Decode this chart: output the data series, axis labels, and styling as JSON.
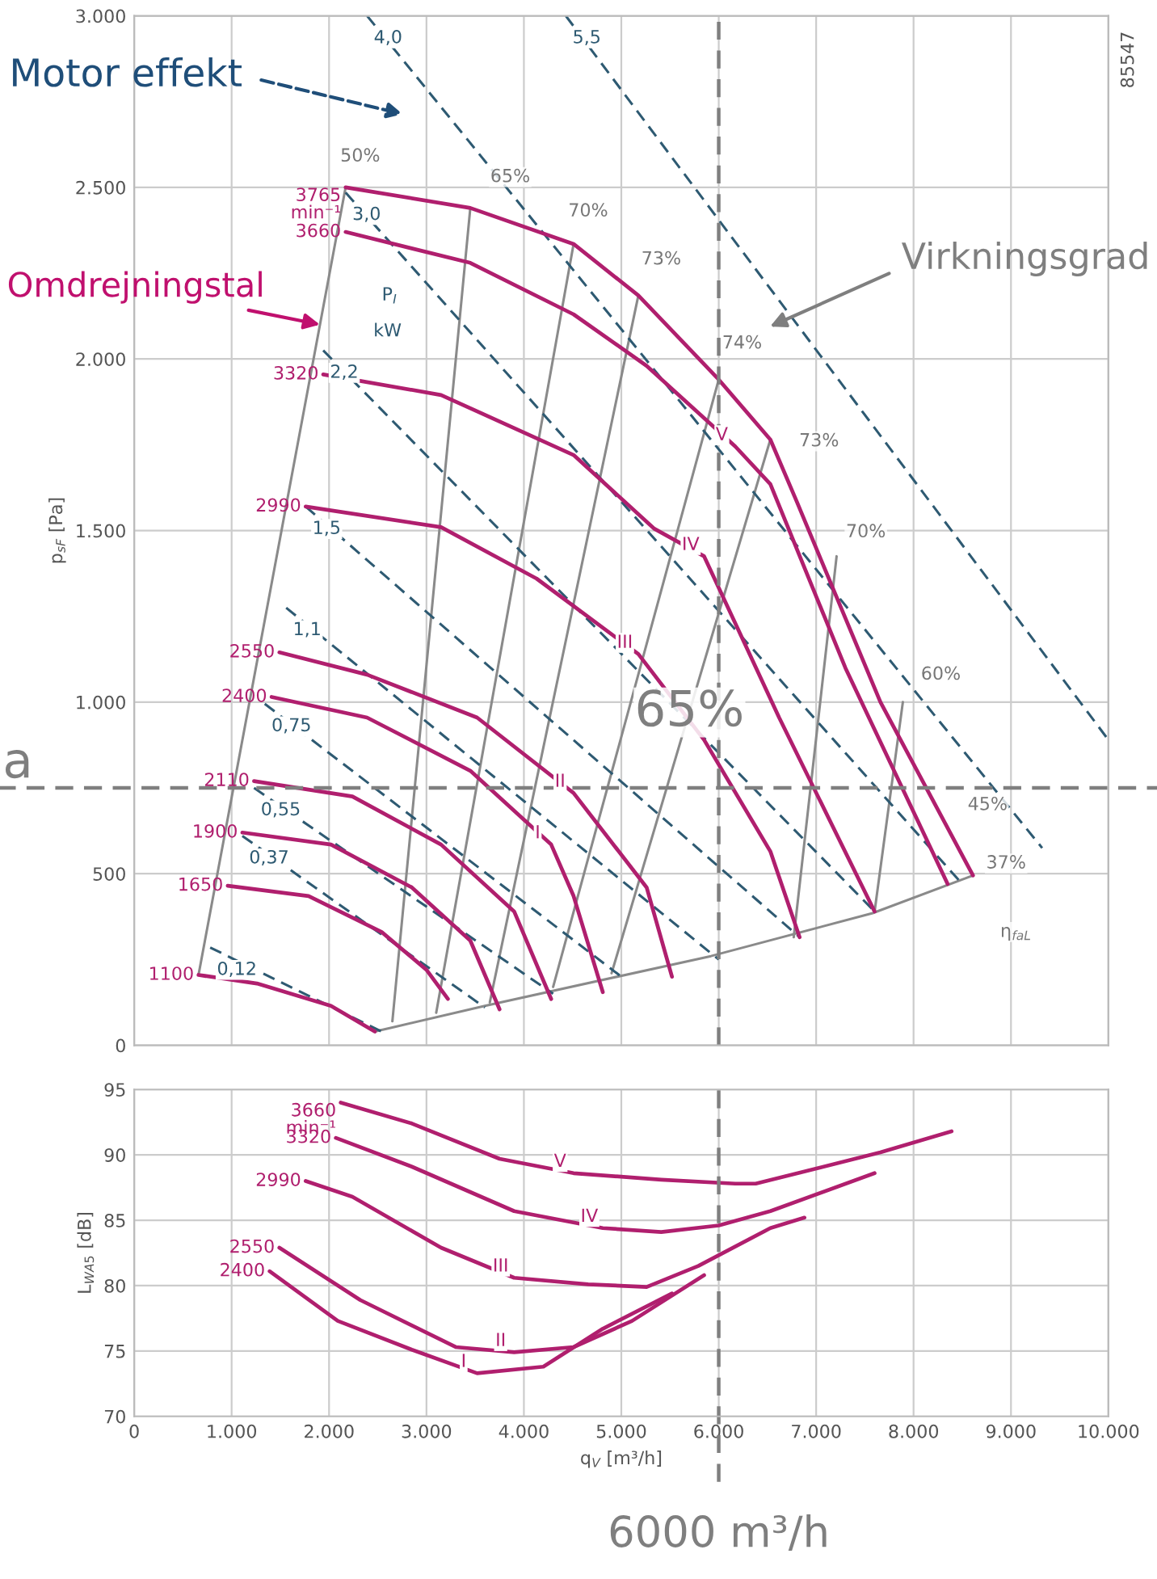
{
  "chart_data": [
    {
      "type": "line",
      "ylabel": "p$_{sF}$ [Pa]",
      "xlim": [
        0,
        10000
      ],
      "ylim": [
        0,
        3000
      ],
      "xticks": [
        0,
        1000,
        2000,
        3000,
        4000,
        5000,
        6000,
        7000,
        8000,
        9000,
        10000
      ],
      "yticks": [
        0,
        500,
        {
          "value": 1000,
          "label": "1.000"
        },
        {
          "value": 1500,
          "label": "1.500"
        },
        {
          "value": 2000,
          "label": "2.000"
        },
        {
          "value": 2500,
          "label": "2.500"
        },
        {
          "value": 3000,
          "label": "3.000"
        }
      ],
      "tick_labels": "y",
      "grid": true,
      "marker": "none",
      "series": [
        {
          "color": "#8a8a8a",
          "line_style": "solid",
          "x": [
            660,
            2170
          ],
          "values": [
            205,
            2500
          ]
        },
        {
          "color": "#8a8a8a",
          "line_style": "solid",
          "x": [
            2470,
            3600,
            5920,
            7580,
            8610
          ],
          "values": [
            40,
            115,
            260,
            385,
            495
          ]
        },
        {
          "color": "#8a8a8a",
          "line_style": "solid",
          "x": [
            3450,
            2650
          ],
          "values": [
            2440,
            70
          ]
        },
        {
          "color": "#8a8a8a",
          "line_style": "solid",
          "x": [
            4510,
            3100
          ],
          "values": [
            2335,
            95
          ]
        },
        {
          "color": "#8a8a8a",
          "line_style": "solid",
          "x": [
            5175,
            3650
          ],
          "values": [
            2185,
            125
          ]
        },
        {
          "color": "#8a8a8a",
          "line_style": "solid",
          "x": [
            6000,
            4300
          ],
          "values": [
            1940,
            170
          ]
        },
        {
          "color": "#8a8a8a",
          "line_style": "solid",
          "x": [
            6530,
            4900
          ],
          "values": [
            1765,
            210
          ]
        },
        {
          "color": "#8a8a8a",
          "line_style": "solid",
          "x": [
            7210,
            6770
          ],
          "values": [
            1425,
            315
          ]
        },
        {
          "color": "#8a8a8a",
          "line_style": "solid",
          "x": [
            7890,
            7600
          ],
          "values": [
            1000,
            390
          ]
        },
        {
          "name": "0,12",
          "color": "#2e5a72",
          "line_style": "dashed",
          "x": [
            780,
            2540
          ],
          "values": [
            285,
            40
          ]
        },
        {
          "name": "0,37",
          "color": "#2e5a72",
          "line_style": "dashed",
          "x": [
            1110,
            3600
          ],
          "values": [
            610,
            110
          ]
        },
        {
          "name": "0,55",
          "color": "#2e5a72",
          "line_style": "dashed",
          "x": [
            1230,
            4300
          ],
          "values": [
            750,
            150
          ]
        },
        {
          "name": "0,75",
          "color": "#2e5a72",
          "line_style": "dashed",
          "x": [
            1340,
            5000
          ],
          "values": [
            995,
            200
          ]
        },
        {
          "name": "1,1",
          "color": "#2e5a72",
          "line_style": "dashed",
          "x": [
            1560,
            6000
          ],
          "values": [
            1275,
            250
          ]
        },
        {
          "name": "1,5",
          "color": "#2e5a72",
          "line_style": "dashed",
          "x": [
            1760,
            6830
          ],
          "values": [
            1570,
            315
          ]
        },
        {
          "name": "2,2",
          "color": "#2e5a72",
          "line_style": "dashed",
          "x": [
            1940,
            7600
          ],
          "values": [
            2025,
            390
          ]
        },
        {
          "name": "3,0",
          "color": "#2e5a72",
          "line_style": "dashed",
          "x": [
            2170,
            8500
          ],
          "values": [
            2485,
            470
          ]
        },
        {
          "name": "4,0",
          "color": "#2e5a72",
          "line_style": "dashed",
          "x": [
            2390,
            9320
          ],
          "values": [
            3000,
            575
          ]
        },
        {
          "name": "5,5",
          "color": "#2e5a72",
          "line_style": "dashed",
          "x": [
            4430,
            10000
          ],
          "values": [
            3000,
            890
          ]
        },
        {
          "name": "3765\nmin⁻¹",
          "color": "#b01f6e",
          "line_style": "solid",
          "x": [
            2170,
            3450,
            4510,
            5175,
            6000,
            6530,
            6800,
            7660,
            8610
          ],
          "values": [
            2500,
            2440,
            2335,
            2185,
            1940,
            1765,
            1585,
            1000,
            495
          ]
        },
        {
          "name": "3660",
          "color": "#b01f6e",
          "line_style": "solid",
          "x": [
            2170,
            3450,
            4510,
            5260,
            6170,
            6530,
            7300,
            8350
          ],
          "values": [
            2370,
            2280,
            2130,
            1980,
            1745,
            1635,
            1100,
            470
          ]
        },
        {
          "name": "3320",
          "color": "#b01f6e",
          "line_style": "solid",
          "x": [
            1940,
            3150,
            4510,
            5340,
            5850,
            6620,
            7600
          ],
          "values": [
            1955,
            1895,
            1720,
            1505,
            1425,
            955,
            390
          ]
        },
        {
          "name": "2990",
          "color": "#b01f6e",
          "line_style": "solid",
          "x": [
            1760,
            3150,
            4130,
            5175,
            5850,
            6530,
            6830
          ],
          "values": [
            1570,
            1510,
            1360,
            1140,
            890,
            565,
            315
          ]
        },
        {
          "name": "2550",
          "color": "#b01f6e",
          "line_style": "solid",
          "x": [
            1490,
            2390,
            3520,
            4510,
            5260,
            5520
          ],
          "values": [
            1145,
            1080,
            955,
            735,
            460,
            200
          ]
        },
        {
          "name": "2400",
          "color": "#b01f6e",
          "line_style": "solid",
          "x": [
            1410,
            2390,
            3450,
            4280,
            4510,
            4810
          ],
          "values": [
            1015,
            955,
            800,
            585,
            435,
            155
          ]
        },
        {
          "name": "2110",
          "color": "#b01f6e",
          "line_style": "solid",
          "x": [
            1230,
            2240,
            3150,
            3900,
            4280
          ],
          "values": [
            770,
            725,
            585,
            390,
            135
          ]
        },
        {
          "name": "1900",
          "color": "#b01f6e",
          "line_style": "solid",
          "x": [
            1110,
            2020,
            2850,
            3450,
            3750
          ],
          "values": [
            620,
            585,
            460,
            305,
            105
          ]
        },
        {
          "name": "1650",
          "color": "#b01f6e",
          "line_style": "solid",
          "x": [
            960,
            1790,
            2540,
            3000,
            3220
          ],
          "values": [
            465,
            435,
            330,
            220,
            135
          ]
        },
        {
          "name": "1100",
          "color": "#b01f6e",
          "line_style": "solid",
          "x": [
            660,
            1260,
            2020,
            2470
          ],
          "values": [
            205,
            180,
            115,
            40
          ]
        }
      ],
      "ref_lines": [
        {
          "axis": "y",
          "value": 750,
          "label": "a",
          "color": "#7f7f7f",
          "line_style": "dashed"
        },
        {
          "axis": "x",
          "value": 6000,
          "color": "#7f7f7f",
          "line_style": "dashed"
        }
      ],
      "annotations": [
        "Motor effekt",
        {
          "text": "Omdrejningstal",
          "x": 1907,
          "y": 2100
        },
        "Virkningsgrad",
        {
          "text": "65%",
          "x": 5700,
          "y": 970
        },
        "85547",
        {
          "text": "50%",
          "x": 2320,
          "y": 2590
        },
        {
          "text": "65%",
          "x": 3860,
          "y": 2530
        },
        {
          "text": "70%",
          "x": 4660,
          "y": 2430
        },
        {
          "text": "73%",
          "x": 5410,
          "y": 2290
        },
        {
          "text": "74%",
          "x": 6240,
          "y": 2045
        },
        {
          "text": "73%",
          "x": 7030,
          "y": 1760
        },
        {
          "text": "70%",
          "x": 7510,
          "y": 1495
        },
        {
          "text": "60%",
          "x": 8280,
          "y": 1080
        },
        {
          "text": "45%",
          "x": 8760,
          "y": 700
        },
        {
          "text": "37%",
          "x": 8950,
          "y": 530
        },
        {
          "text": "η$_{faL}$",
          "x": 9050,
          "y": 330
        },
        {
          "text": "P$_{I}$",
          "x": 2620,
          "y": 2185
        },
        {
          "text": "kW",
          "x": 2600,
          "y": 2080
        },
        {
          "text": "V",
          "x": 6170,
          "y": 1745
        },
        {
          "text": "IV",
          "x": 5850,
          "y": 1425
        },
        {
          "text": "III",
          "x": 5175,
          "y": 1140
        },
        {
          "text": "II",
          "x": 4510,
          "y": 735
        },
        {
          "text": "I",
          "x": 4280,
          "y": 585
        }
      ]
    },
    {
      "type": "line",
      "xlabel": "q$_{V}$ [m³/h]",
      "ylabel": "L$_{WA5}$ [dB]",
      "xlim": [
        0,
        10000
      ],
      "ylim": [
        70,
        95
      ],
      "xticks": [
        0,
        {
          "value": 1000,
          "label": "1.000"
        },
        {
          "value": 2000,
          "label": "2.000"
        },
        {
          "value": 3000,
          "label": "3.000"
        },
        {
          "value": 4000,
          "label": "4.000"
        },
        {
          "value": 5000,
          "label": "5.000"
        },
        {
          "value": 6000,
          "label": "6.000"
        },
        {
          "value": 7000,
          "label": "7.000"
        },
        {
          "value": 8000,
          "label": "8.000"
        },
        {
          "value": 9000,
          "label": "9.000"
        },
        {
          "value": 10000,
          "label": "10.000"
        }
      ],
      "yticks": [
        70,
        75,
        80,
        85,
        90,
        95
      ],
      "grid": true,
      "marker": "none",
      "series": [
        {
          "name": "3660\nmin⁻¹",
          "color": "#b01f6e",
          "line_style": "solid",
          "x": [
            2120,
            2850,
            3750,
            4510,
            5410,
            6170,
            6380,
            6920,
            7660,
            8390
          ],
          "values": [
            94.0,
            92.4,
            89.7,
            88.6,
            88.1,
            87.8,
            87.8,
            88.8,
            90.2,
            91.8
          ]
        },
        {
          "name": "3320",
          "color": "#b01f6e",
          "line_style": "solid",
          "x": [
            2070,
            2850,
            3900,
            4810,
            5410,
            6000,
            6530,
            7600
          ],
          "values": [
            91.3,
            89.1,
            85.7,
            84.4,
            84.1,
            84.6,
            85.7,
            88.6
          ]
        },
        {
          "name": "2990",
          "color": "#b01f6e",
          "line_style": "solid",
          "x": [
            1760,
            2240,
            3150,
            3900,
            4660,
            5260,
            5790,
            6530,
            6880
          ],
          "values": [
            88.0,
            86.8,
            82.9,
            80.6,
            80.1,
            79.9,
            81.5,
            84.4,
            85.2
          ]
        },
        {
          "name": "2550",
          "color": "#b01f6e",
          "line_style": "solid",
          "x": [
            1490,
            2320,
            3300,
            3900,
            4510,
            5110,
            5850
          ],
          "values": [
            82.9,
            78.9,
            75.3,
            74.9,
            75.3,
            77.3,
            80.8
          ]
        },
        {
          "name": "2400",
          "color": "#b01f6e",
          "line_style": "solid",
          "x": [
            1390,
            2090,
            2850,
            3520,
            4200,
            4810,
            5520
          ],
          "values": [
            81.1,
            77.3,
            75.1,
            73.3,
            73.8,
            76.7,
            79.4
          ]
        }
      ],
      "ref_lines": [
        {
          "axis": "x",
          "value": 6000,
          "label": "6000 m³/h",
          "color": "#7f7f7f",
          "line_style": "dashed"
        }
      ],
      "annotations": [
        {
          "text": "V",
          "x": 4510,
          "y": 88.6
        },
        {
          "text": "IV",
          "x": 4810,
          "y": 84.4
        },
        {
          "text": "III",
          "x": 3900,
          "y": 80.6
        },
        {
          "text": "II",
          "x": 3900,
          "y": 74.9
        },
        {
          "text": "I",
          "x": 3520,
          "y": 73.3
        }
      ]
    }
  ]
}
